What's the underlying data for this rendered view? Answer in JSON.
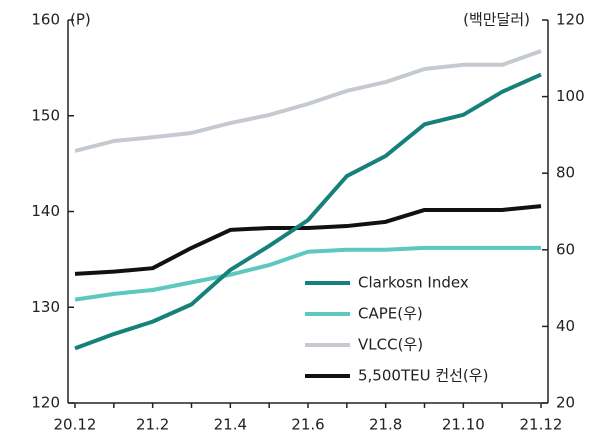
{
  "chart_data": {
    "type": "line",
    "y_label": "(P)",
    "y2_label": "(백만달러)",
    "categories": [
      "20.12",
      null,
      "21.2",
      null,
      "21.4",
      null,
      "21.6",
      null,
      "21.8",
      null,
      "21.10",
      null,
      "21.12"
    ],
    "ylim": [
      120,
      160
    ],
    "yticks": [
      120,
      130,
      140,
      150,
      160
    ],
    "y2lim": [
      20,
      120
    ],
    "y2ticks": [
      20,
      40,
      60,
      80,
      100,
      120
    ],
    "legend": "lower right",
    "series": [
      {
        "name": "Clarkosn Index",
        "color": "#16807a",
        "values": [
          125.7,
          127.2,
          128.5,
          130.3,
          133.9,
          136.4,
          139.1,
          143.7,
          145.8,
          149.1,
          150.1,
          152.5,
          154.3
        ]
      },
      {
        "name": "CAPE(우)",
        "color": "#5cc8c0",
        "axis": "y2",
        "values": [
          47,
          48.5,
          49.5,
          51.5,
          53.5,
          56,
          59.5,
          60,
          60,
          60.5,
          60.5,
          60.5,
          60.5
        ]
      },
      {
        "name": "VLCC(우)",
        "color": "#c4cacf",
        "axis": "y2",
        "values": [
          85.8,
          88.4,
          89.4,
          90.5,
          93.1,
          95.2,
          98.1,
          101.5,
          103.8,
          107.2,
          108.3,
          108.3,
          111.9
        ]
      },
      {
        "name": "5,500TEU 컨선(우)",
        "color": "#111111",
        "axis": "y2",
        "values": [
          53.7,
          54.3,
          55.2,
          60.5,
          65.2,
          65.7,
          65.7,
          66.2,
          67.3,
          70.4,
          70.4,
          70.4,
          71.4
        ]
      }
    ]
  }
}
